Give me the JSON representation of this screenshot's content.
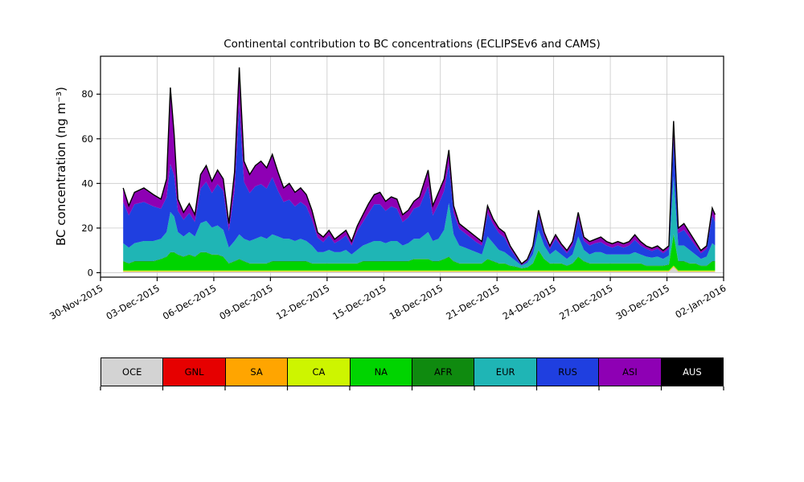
{
  "title": "Continental contribution to BC concentrations (ECLIPSEv6 and CAMS)",
  "chart_data": {
    "type": "area",
    "stacked": true,
    "title": "Continental contribution to BC concentrations (ECLIPSEv6 and CAMS)",
    "xlabel": "",
    "ylabel": "BC concentration (ng m⁻³)",
    "grid": true,
    "x_reference_date": "30-Nov-2015",
    "xlim": [
      0,
      33
    ],
    "ylim": [
      -2,
      97
    ],
    "yticks": [
      0,
      20,
      40,
      60,
      80
    ],
    "xtick_positions": [
      0,
      3,
      6,
      9,
      12,
      15,
      18,
      21,
      24,
      27,
      30,
      33
    ],
    "xtick_labels": [
      "30-Nov-2015",
      "03-Dec-2015",
      "06-Dec-2015",
      "09-Dec-2015",
      "12-Dec-2015",
      "15-Dec-2015",
      "18-Dec-2015",
      "21-Dec-2015",
      "24-Dec-2015",
      "27-Dec-2015",
      "30-Dec-2015",
      "02-Jan-2016"
    ],
    "x": [
      1.2,
      1.5,
      1.8,
      2.3,
      2.8,
      3.2,
      3.5,
      3.7,
      3.9,
      4.1,
      4.4,
      4.7,
      5.0,
      5.3,
      5.6,
      5.9,
      6.2,
      6.5,
      6.8,
      7.1,
      7.35,
      7.6,
      7.9,
      8.2,
      8.5,
      8.8,
      9.1,
      9.4,
      9.7,
      10.0,
      10.3,
      10.6,
      10.9,
      11.2,
      11.5,
      11.8,
      12.1,
      12.4,
      12.7,
      13.0,
      13.3,
      13.6,
      13.9,
      14.2,
      14.5,
      14.8,
      15.1,
      15.4,
      15.7,
      16.0,
      16.3,
      16.6,
      16.9,
      17.2,
      17.35,
      17.6,
      17.9,
      18.2,
      18.45,
      18.7,
      19.0,
      19.3,
      19.6,
      19.9,
      20.2,
      20.5,
      20.8,
      21.1,
      21.4,
      21.7,
      22.0,
      22.3,
      22.6,
      22.9,
      23.2,
      23.5,
      23.8,
      24.1,
      24.4,
      24.7,
      25.0,
      25.3,
      25.6,
      25.9,
      26.2,
      26.5,
      26.8,
      27.1,
      27.4,
      27.7,
      28.0,
      28.3,
      28.6,
      28.9,
      29.2,
      29.5,
      29.8,
      30.1,
      30.35,
      30.6,
      30.9,
      31.2,
      31.5,
      31.8,
      32.1,
      32.4,
      32.55
    ],
    "series": [
      {
        "name": "OCE",
        "color": "#d3d3d3",
        "const": 0.4,
        "overrides": {
          "98": 2.5
        }
      },
      {
        "name": "GNL",
        "color": "#e60000",
        "const": 0.1
      },
      {
        "name": "SA",
        "color": "#ffa500",
        "const": 0.1
      },
      {
        "name": "CA",
        "color": "#cdf500",
        "const": 0.4
      },
      {
        "name": "NA",
        "color": "#00d400",
        "values": [
          4,
          3,
          4,
          4,
          4,
          5,
          6,
          8,
          8,
          7,
          6,
          7,
          6,
          8,
          8,
          7,
          7,
          6,
          3,
          4,
          5,
          4,
          3,
          3,
          3,
          3,
          4,
          4,
          4,
          4,
          4,
          4,
          4,
          3,
          3,
          3,
          3,
          3,
          3,
          3,
          3,
          3,
          4,
          4,
          4,
          4,
          4,
          4,
          4,
          4,
          4,
          5,
          5,
          5,
          5,
          4,
          4,
          5,
          6,
          4,
          3,
          3,
          3,
          3,
          3,
          5,
          4,
          3,
          3,
          2,
          1.5,
          0.8,
          1.2,
          3,
          9,
          5,
          3,
          3,
          3,
          2,
          3,
          6,
          4,
          3,
          3,
          3,
          3,
          3,
          3,
          3,
          3,
          3,
          3,
          2,
          2,
          2,
          2,
          2.5,
          14,
          4,
          4,
          3,
          3,
          2,
          2,
          4,
          4
        ]
      },
      {
        "name": "AFR",
        "color": "#0f8a0f",
        "const": 0.2
      },
      {
        "name": "EUR",
        "color": "#1fb5b5",
        "values": [
          8,
          7,
          8,
          9,
          9,
          9,
          11,
          18,
          16,
          10,
          9,
          10,
          9,
          13,
          14,
          12,
          13,
          12,
          7,
          9,
          11,
          10,
          10,
          11,
          12,
          11,
          12,
          11,
          10,
          10,
          9,
          10,
          9,
          8,
          5,
          5,
          6,
          5,
          5,
          6,
          4,
          6,
          7,
          8,
          9,
          9,
          8,
          9,
          9,
          7,
          8,
          9,
          9,
          11,
          12,
          9,
          10,
          13,
          24,
          12,
          8,
          7,
          6,
          5,
          4,
          10,
          8,
          6,
          5,
          4,
          2.5,
          1.2,
          2,
          4,
          9,
          6,
          4,
          6,
          4,
          3,
          4,
          9,
          5,
          4,
          5,
          5,
          4,
          4,
          4,
          4,
          4,
          5,
          4,
          4,
          3.5,
          4,
          3,
          4,
          26,
          7,
          7,
          6,
          4,
          3,
          4,
          8,
          7
        ]
      },
      {
        "name": "RUS",
        "color": "#1f3fe0",
        "values": [
          18.5,
          14.5,
          17.5,
          17.5,
          15.5,
          13.5,
          15.5,
          21.5,
          18.5,
          9.5,
          7.5,
          8.5,
          6.5,
          15.5,
          17.5,
          15.5,
          18.5,
          17.5,
          7.5,
          22.5,
          58.5,
          25.5,
          21.5,
          23.5,
          23.5,
          22.5,
          25.5,
          20.5,
          16.5,
          17.5,
          15.5,
          16.5,
          15.5,
          11.5,
          6.5,
          4.5,
          6.5,
          4,
          5.5,
          6.5,
          4,
          8.5,
          10.5,
          13.5,
          16.5,
          16.5,
          14.5,
          15.5,
          14.5,
          10.5,
          11.5,
          13.5,
          14.5,
          18.5,
          20.5,
          11.5,
          15.5,
          17.5,
          17.5,
          9.5,
          7.5,
          6.5,
          5.5,
          4.5,
          4,
          10.5,
          8.5,
          7.5,
          6.5,
          3.5,
          1.7,
          0.2,
          0.8,
          2.5,
          6.5,
          4,
          2.5,
          5,
          3.5,
          2.5,
          4,
          8,
          4,
          4,
          4,
          4.5,
          4,
          3,
          4,
          3,
          4,
          5.5,
          4,
          3.5,
          3,
          3.5,
          2.5,
          3,
          16.4,
          5.5,
          7,
          5.5,
          4,
          2.5,
          3.5,
          12.5,
          10.5
        ]
      },
      {
        "name": "ASI",
        "color": "#8e00b4",
        "values": [
          6,
          4,
          5,
          6,
          5,
          4,
          8,
          34,
          18,
          5,
          3,
          4,
          3,
          6,
          7,
          5,
          6,
          5,
          3,
          8,
          16,
          9,
          8,
          9,
          10,
          9,
          10,
          8,
          6,
          7,
          6,
          6,
          5,
          4,
          2,
          2,
          2,
          1.5,
          2,
          2,
          1.5,
          2,
          3,
          4,
          4,
          5,
          4,
          4,
          4,
          3,
          3,
          3,
          4,
          6,
          7,
          4,
          5,
          5,
          6,
          3,
          2,
          2,
          2,
          2,
          1.5,
          3,
          2,
          2,
          2,
          1,
          0.8,
          0.3,
          0.5,
          1,
          2,
          1.5,
          1,
          1.5,
          1,
          1,
          1.5,
          2.5,
          1.5,
          1.5,
          1.5,
          2,
          1.5,
          1.5,
          1.5,
          1.5,
          1.5,
          2,
          1.5,
          1,
          1,
          1,
          1,
          1,
          8,
          2,
          2.5,
          2,
          1.5,
          1,
          1,
          3,
          3
        ]
      },
      {
        "name": "AUS",
        "color": "#000000",
        "const": 0.3
      }
    ],
    "legend": {
      "position": "bottom",
      "entries": [
        {
          "label": "OCE",
          "color": "#d3d3d3",
          "text_color": "#000000"
        },
        {
          "label": "GNL",
          "color": "#e60000",
          "text_color": "#000000"
        },
        {
          "label": "SA",
          "color": "#ffa500",
          "text_color": "#000000"
        },
        {
          "label": "CA",
          "color": "#cdf500",
          "text_color": "#000000"
        },
        {
          "label": "NA",
          "color": "#00d400",
          "text_color": "#000000"
        },
        {
          "label": "AFR",
          "color": "#0f8a0f",
          "text_color": "#000000"
        },
        {
          "label": "EUR",
          "color": "#1fb5b5",
          "text_color": "#000000"
        },
        {
          "label": "RUS",
          "color": "#1f3fe0",
          "text_color": "#000000"
        },
        {
          "label": "ASI",
          "color": "#8e00b4",
          "text_color": "#000000"
        },
        {
          "label": "AUS",
          "color": "#000000",
          "text_color": "#ffffff"
        }
      ]
    },
    "style": {
      "grid_color": "#c8c8c8",
      "spine_color": "#000000",
      "outline_color": "#000000",
      "background": "#ffffff"
    }
  }
}
